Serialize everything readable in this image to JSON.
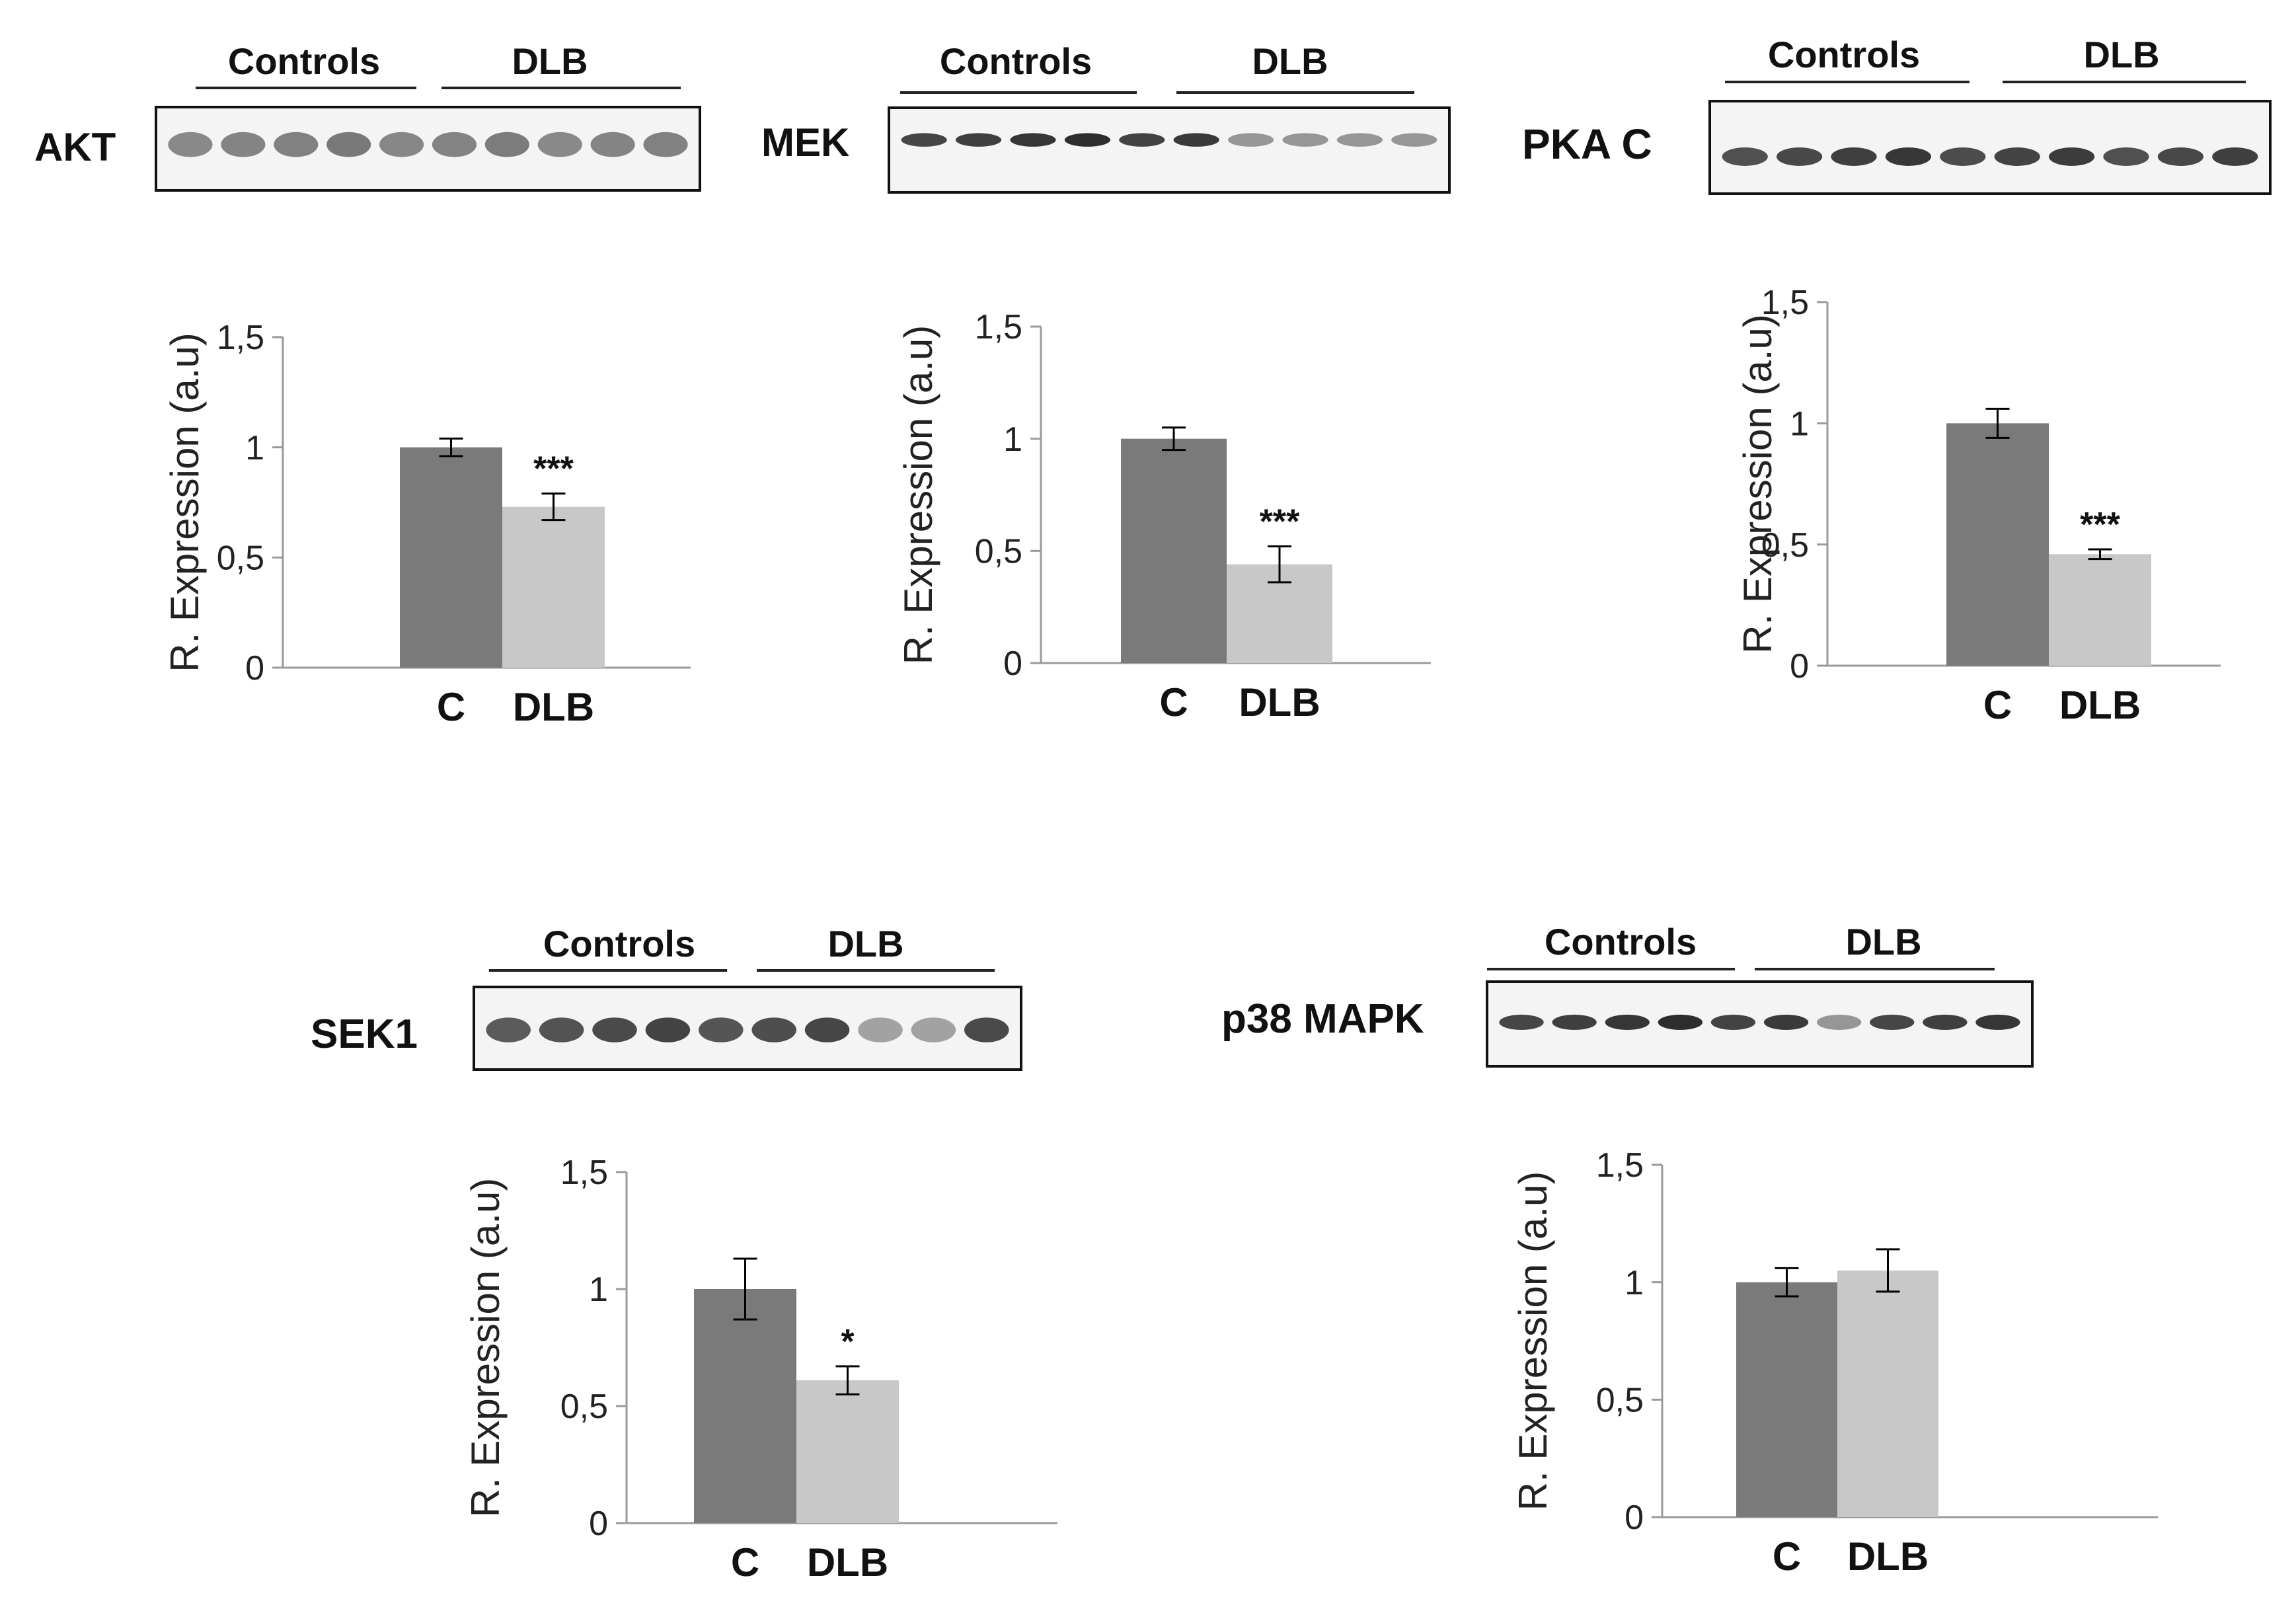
{
  "figure": {
    "panels": [
      {
        "protein": "AKT",
        "group_labels": [
          "Controls",
          "DLB"
        ]
      },
      {
        "protein": "MEK",
        "group_labels": [
          "Controls",
          "DLB"
        ]
      },
      {
        "protein": "PKA C",
        "group_labels": [
          "Controls",
          "DLB"
        ]
      },
      {
        "protein": "SEK1",
        "group_labels": [
          "Controls",
          "DLB"
        ]
      },
      {
        "protein": "p38 MAPK",
        "group_labels": [
          "Controls",
          "DLB"
        ]
      }
    ]
  },
  "colors": {
    "control": "#7a7a7a",
    "dlb": "#c8c8c8",
    "axis": "#9a9a9a"
  },
  "chart_data": [
    {
      "type": "bar",
      "title": "AKT",
      "ylabel": "R. Expression (a.u)",
      "xlabel": "",
      "categories": [
        "C",
        "DLB"
      ],
      "values": [
        1.0,
        0.73
      ],
      "errors": [
        0.04,
        0.06
      ],
      "significance": [
        "",
        "***"
      ],
      "ylim": [
        0,
        1.5
      ],
      "yticks": [
        0,
        0.5,
        1,
        1.5
      ],
      "ytick_labels": [
        "0",
        "0,5",
        "1",
        "1,5"
      ]
    },
    {
      "type": "bar",
      "title": "MEK",
      "ylabel": "R. Expression (a.u)",
      "xlabel": "",
      "categories": [
        "C",
        "DLB"
      ],
      "values": [
        1.0,
        0.44
      ],
      "errors": [
        0.05,
        0.08
      ],
      "significance": [
        "",
        "***"
      ],
      "ylim": [
        0,
        1.5
      ],
      "yticks": [
        0,
        0.5,
        1,
        1.5
      ],
      "ytick_labels": [
        "0",
        "0,5",
        "1",
        "1,5"
      ]
    },
    {
      "type": "bar",
      "title": "PKA C",
      "ylabel": "R. Expression (a.u)",
      "xlabel": "",
      "categories": [
        "C",
        "DLB"
      ],
      "values": [
        1.0,
        0.46
      ],
      "errors": [
        0.06,
        0.02
      ],
      "significance": [
        "",
        "***"
      ],
      "ylim": [
        0,
        1.5
      ],
      "yticks": [
        0,
        0.5,
        1,
        1.5
      ],
      "ytick_labels": [
        "0",
        "0,5",
        "1",
        "1,5"
      ]
    },
    {
      "type": "bar",
      "title": "SEK1",
      "ylabel": "R. Expression (a.u)",
      "xlabel": "",
      "categories": [
        "C",
        "DLB"
      ],
      "values": [
        1.0,
        0.61
      ],
      "errors": [
        0.13,
        0.06
      ],
      "significance": [
        "",
        "*"
      ],
      "ylim": [
        0,
        1.5
      ],
      "yticks": [
        0,
        0.5,
        1,
        1.5
      ],
      "ytick_labels": [
        "0",
        "0,5",
        "1",
        "1,5"
      ]
    },
    {
      "type": "bar",
      "title": "p38 MAPK",
      "ylabel": "R. Expression (a.u)",
      "xlabel": "",
      "categories": [
        "C",
        "DLB"
      ],
      "values": [
        1.0,
        1.05
      ],
      "errors": [
        0.06,
        0.09
      ],
      "significance": [
        "",
        ""
      ],
      "ylim": [
        0,
        1.5
      ],
      "yticks": [
        0,
        0.5,
        1,
        1.5
      ],
      "ytick_labels": [
        "0",
        "0,5",
        "1",
        "1,5"
      ]
    }
  ]
}
